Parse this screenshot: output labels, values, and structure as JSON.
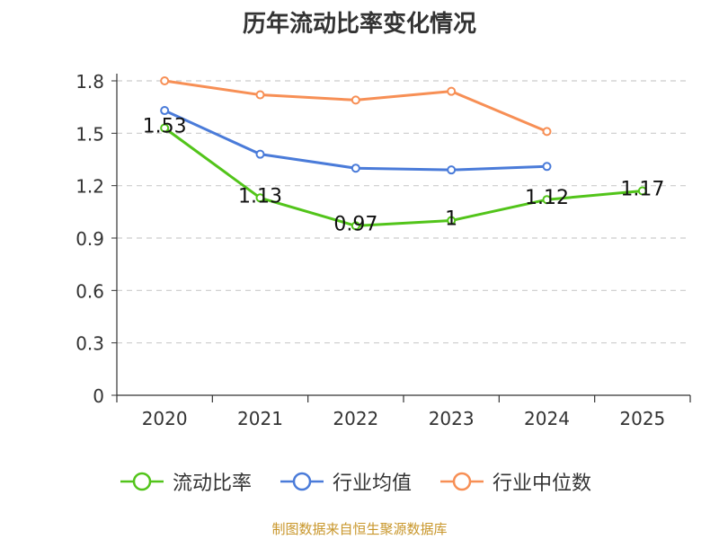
{
  "chart_data": {
    "type": "line",
    "title": "历年流动比率变化情况",
    "categories": [
      "2020",
      "2021",
      "2022",
      "2023",
      "2024",
      "2025"
    ],
    "ylim": [
      0,
      1.8
    ],
    "yticks": [
      "0",
      "0.3",
      "0.6",
      "0.9",
      "1.2",
      "1.5",
      "1.8"
    ],
    "grid": true,
    "legend_position": "bottom",
    "series": [
      {
        "name": "流动比率",
        "color": "#52c41a",
        "values": [
          1.53,
          1.13,
          0.97,
          1.0,
          1.12,
          1.17
        ],
        "labels": [
          "1.53",
          "1.13",
          "0.97",
          "1",
          "1.12",
          "1.17"
        ]
      },
      {
        "name": "行业均值",
        "color": "#4a7bd9",
        "values": [
          1.63,
          1.38,
          1.3,
          1.29,
          1.31,
          null
        ]
      },
      {
        "name": "行业中位数",
        "color": "#f78f55",
        "values": [
          1.8,
          1.72,
          1.69,
          1.74,
          1.51,
          null
        ]
      }
    ]
  },
  "footer": "制图数据来自恒生聚源数据库"
}
